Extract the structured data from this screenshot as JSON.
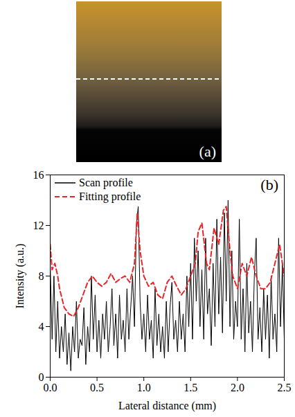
{
  "image_panel": {
    "label": "(a)"
  },
  "chart_data": {
    "type": "line",
    "panel_label": "(b)",
    "x_label": "Lateral distance (mm)",
    "y_label": "Intensity (a.u.)",
    "xlim": [
      0,
      2.5
    ],
    "xticks": [
      {
        "value": 0,
        "label": "0.0"
      },
      0.5,
      {
        "value": 1,
        "label": "1.0"
      },
      1.5,
      {
        "value": 2,
        "label": "2.0"
      },
      2.5
    ],
    "ylim": [
      0,
      16
    ],
    "yticks": [
      0,
      4,
      8,
      12,
      16
    ],
    "legend": "top-left",
    "series": [
      {
        "name": "Scan profile",
        "color": "#000000",
        "line_style": "solid",
        "x": [
          0,
          0.02,
          0.04,
          0.06,
          0.08,
          0.1,
          0.12,
          0.14,
          0.16,
          0.18,
          0.2,
          0.22,
          0.24,
          0.26,
          0.28,
          0.3,
          0.32,
          0.34,
          0.36,
          0.38,
          0.4,
          0.42,
          0.44,
          0.46,
          0.48,
          0.5,
          0.52,
          0.54,
          0.56,
          0.58,
          0.6,
          0.62,
          0.64,
          0.66,
          0.68,
          0.7,
          0.72,
          0.74,
          0.76,
          0.78,
          0.8,
          0.82,
          0.84,
          0.86,
          0.88,
          0.9,
          0.92,
          0.94,
          0.96,
          0.98,
          1,
          1.02,
          1.04,
          1.06,
          1.08,
          1.1,
          1.12,
          1.14,
          1.16,
          1.18,
          1.2,
          1.22,
          1.24,
          1.26,
          1.28,
          1.3,
          1.32,
          1.34,
          1.36,
          1.38,
          1.4,
          1.42,
          1.44,
          1.46,
          1.48,
          1.5,
          1.52,
          1.54,
          1.56,
          1.58,
          1.6,
          1.62,
          1.64,
          1.66,
          1.68,
          1.7,
          1.72,
          1.74,
          1.76,
          1.78,
          1.8,
          1.82,
          1.84,
          1.86,
          1.88,
          1.9,
          1.92,
          1.94,
          1.96,
          1.98,
          2,
          2.02,
          2.04,
          2.06,
          2.08,
          2.1,
          2.12,
          2.14,
          2.16,
          2.18,
          2.2,
          2.22,
          2.24,
          2.26,
          2.28,
          2.3,
          2.32,
          2.34,
          2.36,
          2.38,
          2.4,
          2.42,
          2.44,
          2.46,
          2.48,
          2.5
        ],
        "values": [
          9,
          3,
          8,
          2,
          6,
          1.5,
          4,
          2,
          5,
          1,
          3.5,
          0.5,
          4,
          2,
          6,
          1.5,
          3,
          2.5,
          5.5,
          1,
          4,
          2,
          8,
          3,
          6.5,
          2,
          4.5,
          1.5,
          5,
          3,
          6,
          2,
          4,
          7,
          2.5,
          5,
          1.5,
          6.5,
          3,
          4.5,
          2,
          7,
          3,
          5.5,
          8,
          4,
          12,
          13.5,
          6,
          3,
          5,
          2,
          6.5,
          3,
          4.5,
          1.5,
          7,
          2.5,
          5,
          2,
          4,
          1.5,
          6,
          2,
          5.5,
          7.5,
          3,
          4.5,
          2,
          6,
          3,
          5,
          2,
          8,
          4,
          9,
          3,
          11,
          6,
          10,
          4,
          8.5,
          3,
          11,
          5,
          7,
          2.5,
          9,
          4,
          12.5,
          5,
          9.5,
          3.5,
          13,
          6,
          14,
          4,
          10,
          3,
          6,
          4,
          12.5,
          3,
          7,
          2,
          9,
          3.5,
          6,
          2,
          8,
          11,
          3,
          5.5,
          2,
          7,
          3,
          6.5,
          1.5,
          8,
          3,
          5,
          2,
          11,
          4,
          9,
          3
        ]
      },
      {
        "name": "Fitting profile",
        "color": "#e8262a",
        "line_style": "dashed",
        "x": [
          0,
          0.02,
          0.05,
          0.08,
          0.1,
          0.15,
          0.2,
          0.25,
          0.3,
          0.35,
          0.4,
          0.45,
          0.5,
          0.55,
          0.6,
          0.65,
          0.7,
          0.75,
          0.8,
          0.85,
          0.9,
          0.93,
          0.96,
          1,
          1.05,
          1.1,
          1.15,
          1.2,
          1.25,
          1.3,
          1.35,
          1.4,
          1.45,
          1.5,
          1.55,
          1.58,
          1.62,
          1.67,
          1.7,
          1.75,
          1.8,
          1.85,
          1.88,
          1.92,
          1.95,
          2,
          2.05,
          2.1,
          2.15,
          2.2,
          2.25,
          2.3,
          2.35,
          2.4,
          2.45,
          2.5
        ],
        "values": [
          10.5,
          8.5,
          9,
          8,
          7,
          5.5,
          5,
          4.8,
          5.5,
          6.5,
          7.5,
          8,
          7.5,
          7.2,
          7.5,
          8.2,
          7.5,
          7.8,
          8,
          7.5,
          9,
          13,
          10,
          8,
          7.2,
          7.5,
          6.5,
          6.2,
          7.5,
          8,
          7.2,
          6.5,
          7,
          8,
          9,
          11.5,
          12.2,
          9,
          8.5,
          11.8,
          10.5,
          13.2,
          13.5,
          10,
          8,
          7,
          9,
          8,
          9.5,
          8,
          7,
          7,
          7.5,
          9,
          10.5,
          8
        ]
      }
    ]
  }
}
